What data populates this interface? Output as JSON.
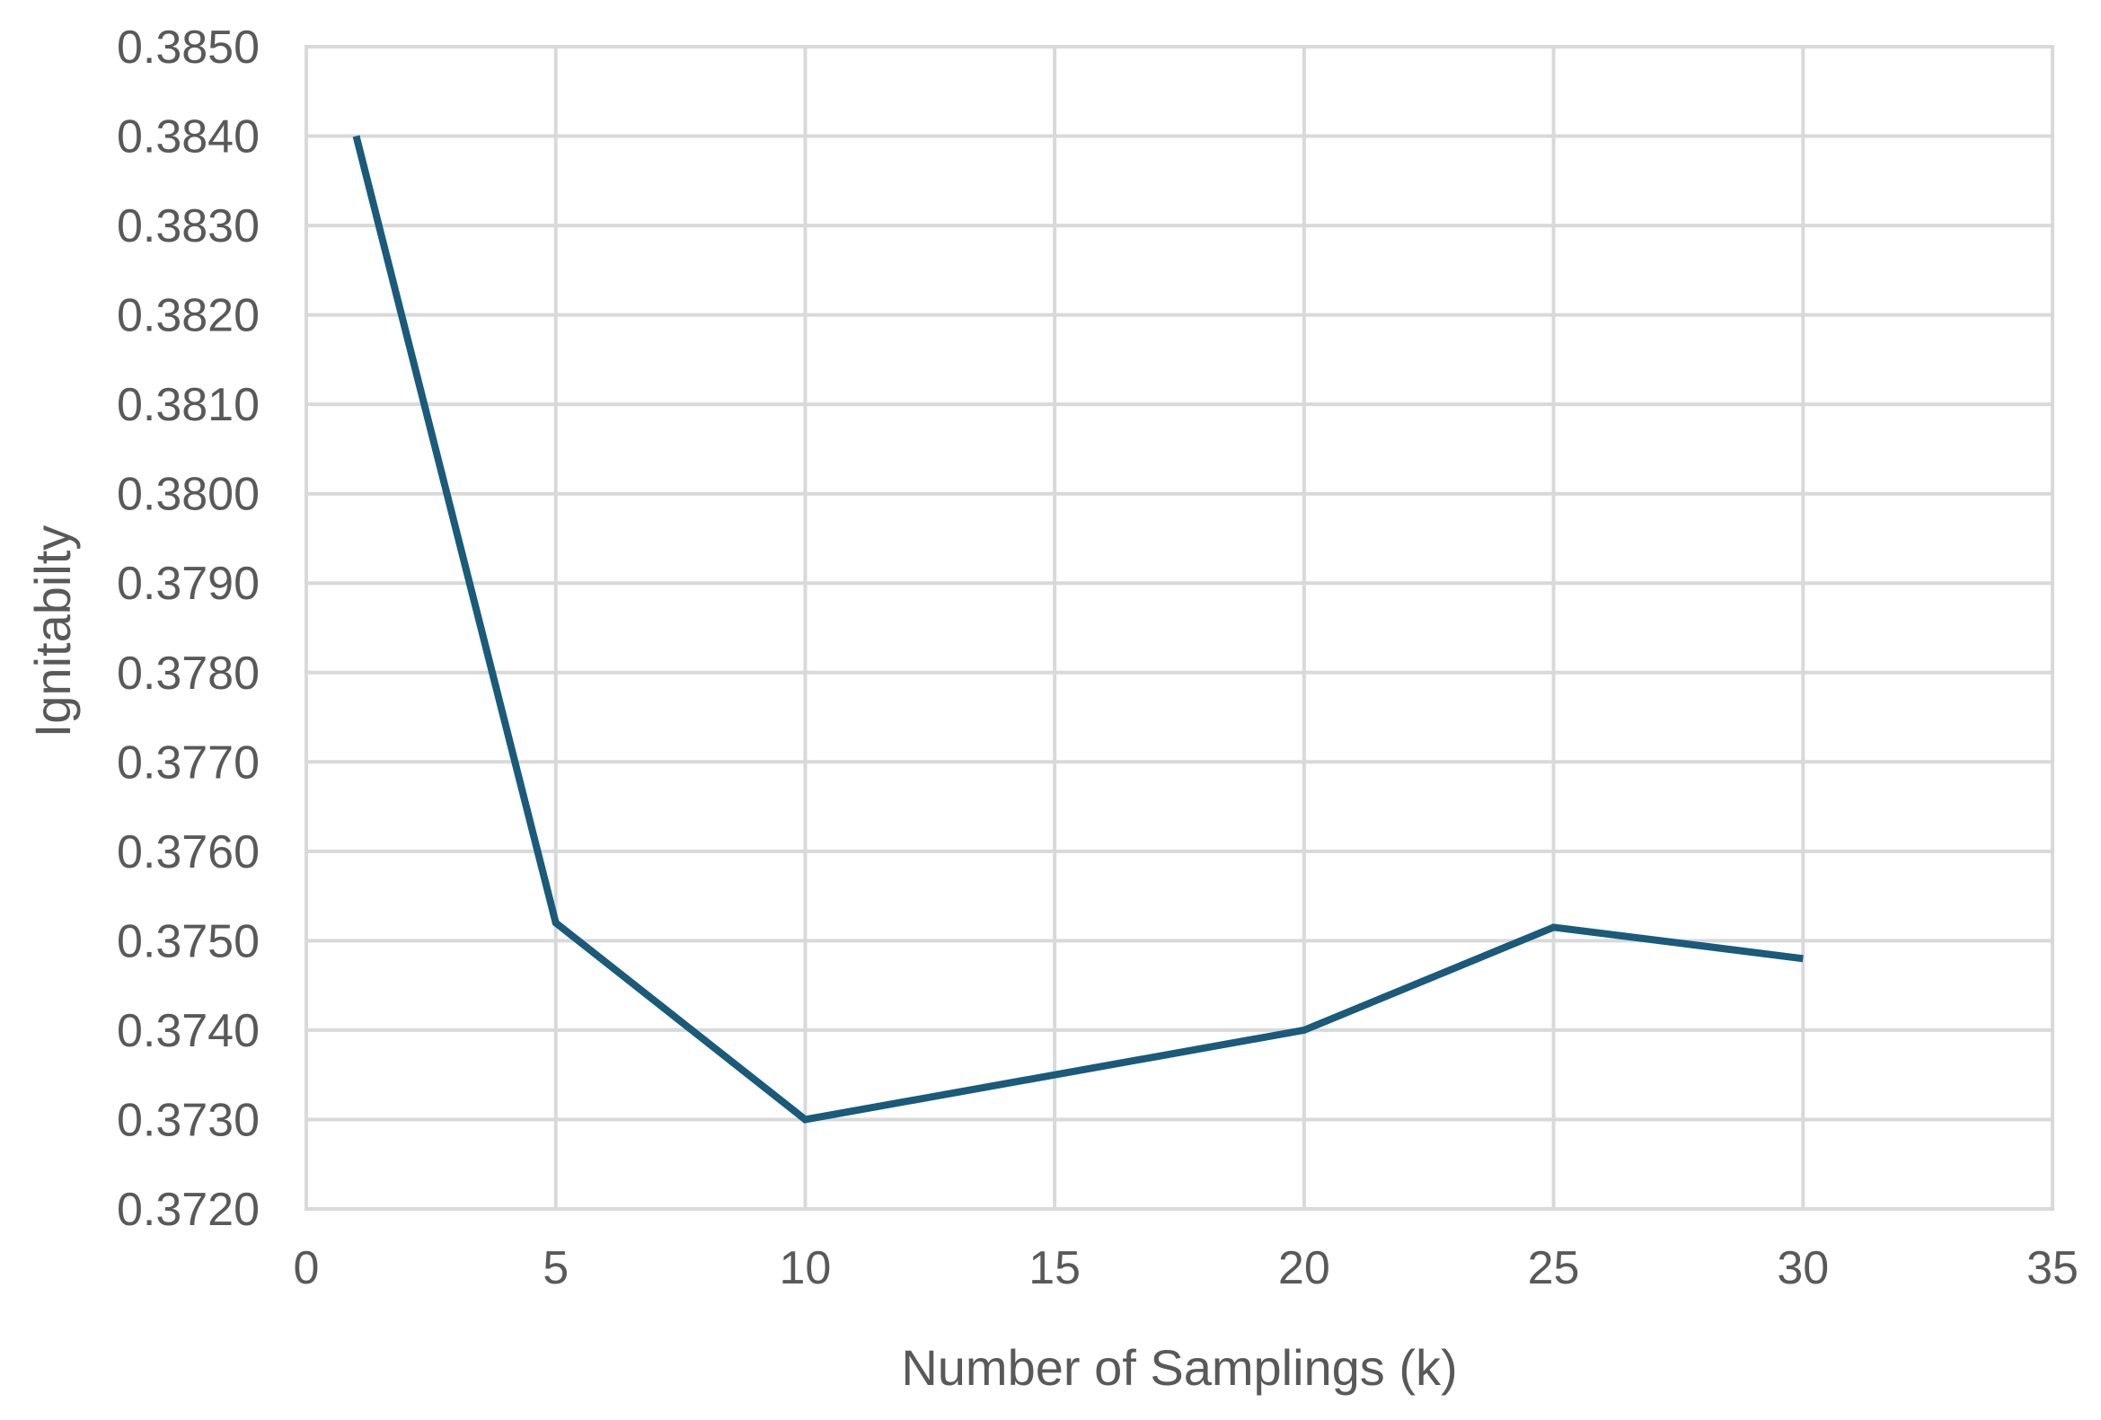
{
  "chart_data": {
    "type": "line",
    "title": "",
    "xlabel": "Number of Samplings (k)",
    "ylabel": "Ignitabilty",
    "xlim": [
      0,
      35
    ],
    "ylim": [
      0.372,
      0.385
    ],
    "x_ticks": [
      "0",
      "5",
      "10",
      "15",
      "20",
      "25",
      "30",
      "35"
    ],
    "y_ticks": [
      "0.3720",
      "0.3730",
      "0.3740",
      "0.3750",
      "0.3760",
      "0.3770",
      "0.3780",
      "0.3790",
      "0.3800",
      "0.3810",
      "0.3820",
      "0.3830",
      "0.3840",
      "0.3850"
    ],
    "grid": true,
    "legend": "none",
    "series": [
      {
        "color": "#1a5a7a",
        "x": [
          1,
          5,
          10,
          20,
          25,
          30
        ],
        "y": [
          0.384,
          0.3752,
          0.373,
          0.374,
          0.37515,
          0.3748
        ]
      }
    ]
  }
}
